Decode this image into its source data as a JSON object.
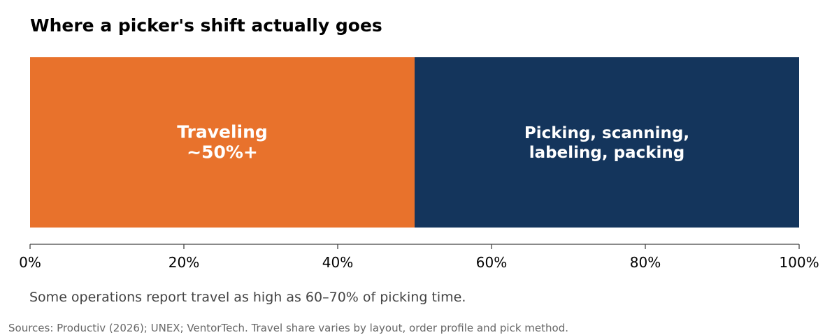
{
  "chart_data": {
    "type": "bar",
    "orientation": "horizontal-stacked",
    "title": "Where a picker's shift actually goes",
    "segments": [
      {
        "label_lines": [
          "Traveling",
          "~50%+"
        ],
        "value": 50,
        "color": "#E8722C"
      },
      {
        "label_lines": [
          "Picking, scanning,",
          "labeling, packing"
        ],
        "value": 50,
        "color": "#14355C"
      }
    ],
    "xlim": [
      0,
      100
    ],
    "x_ticks": [
      0,
      20,
      40,
      60,
      80,
      100
    ],
    "x_tick_labels": [
      "0%",
      "20%",
      "40%",
      "60%",
      "80%",
      "100%"
    ],
    "grid": false,
    "legend": "none",
    "annotation": "Some operations report travel as high as 60–70% of picking time.",
    "source": "Sources: Productiv (2026); UNEX; VentorTech. Travel share varies by layout, order profile and pick method."
  }
}
